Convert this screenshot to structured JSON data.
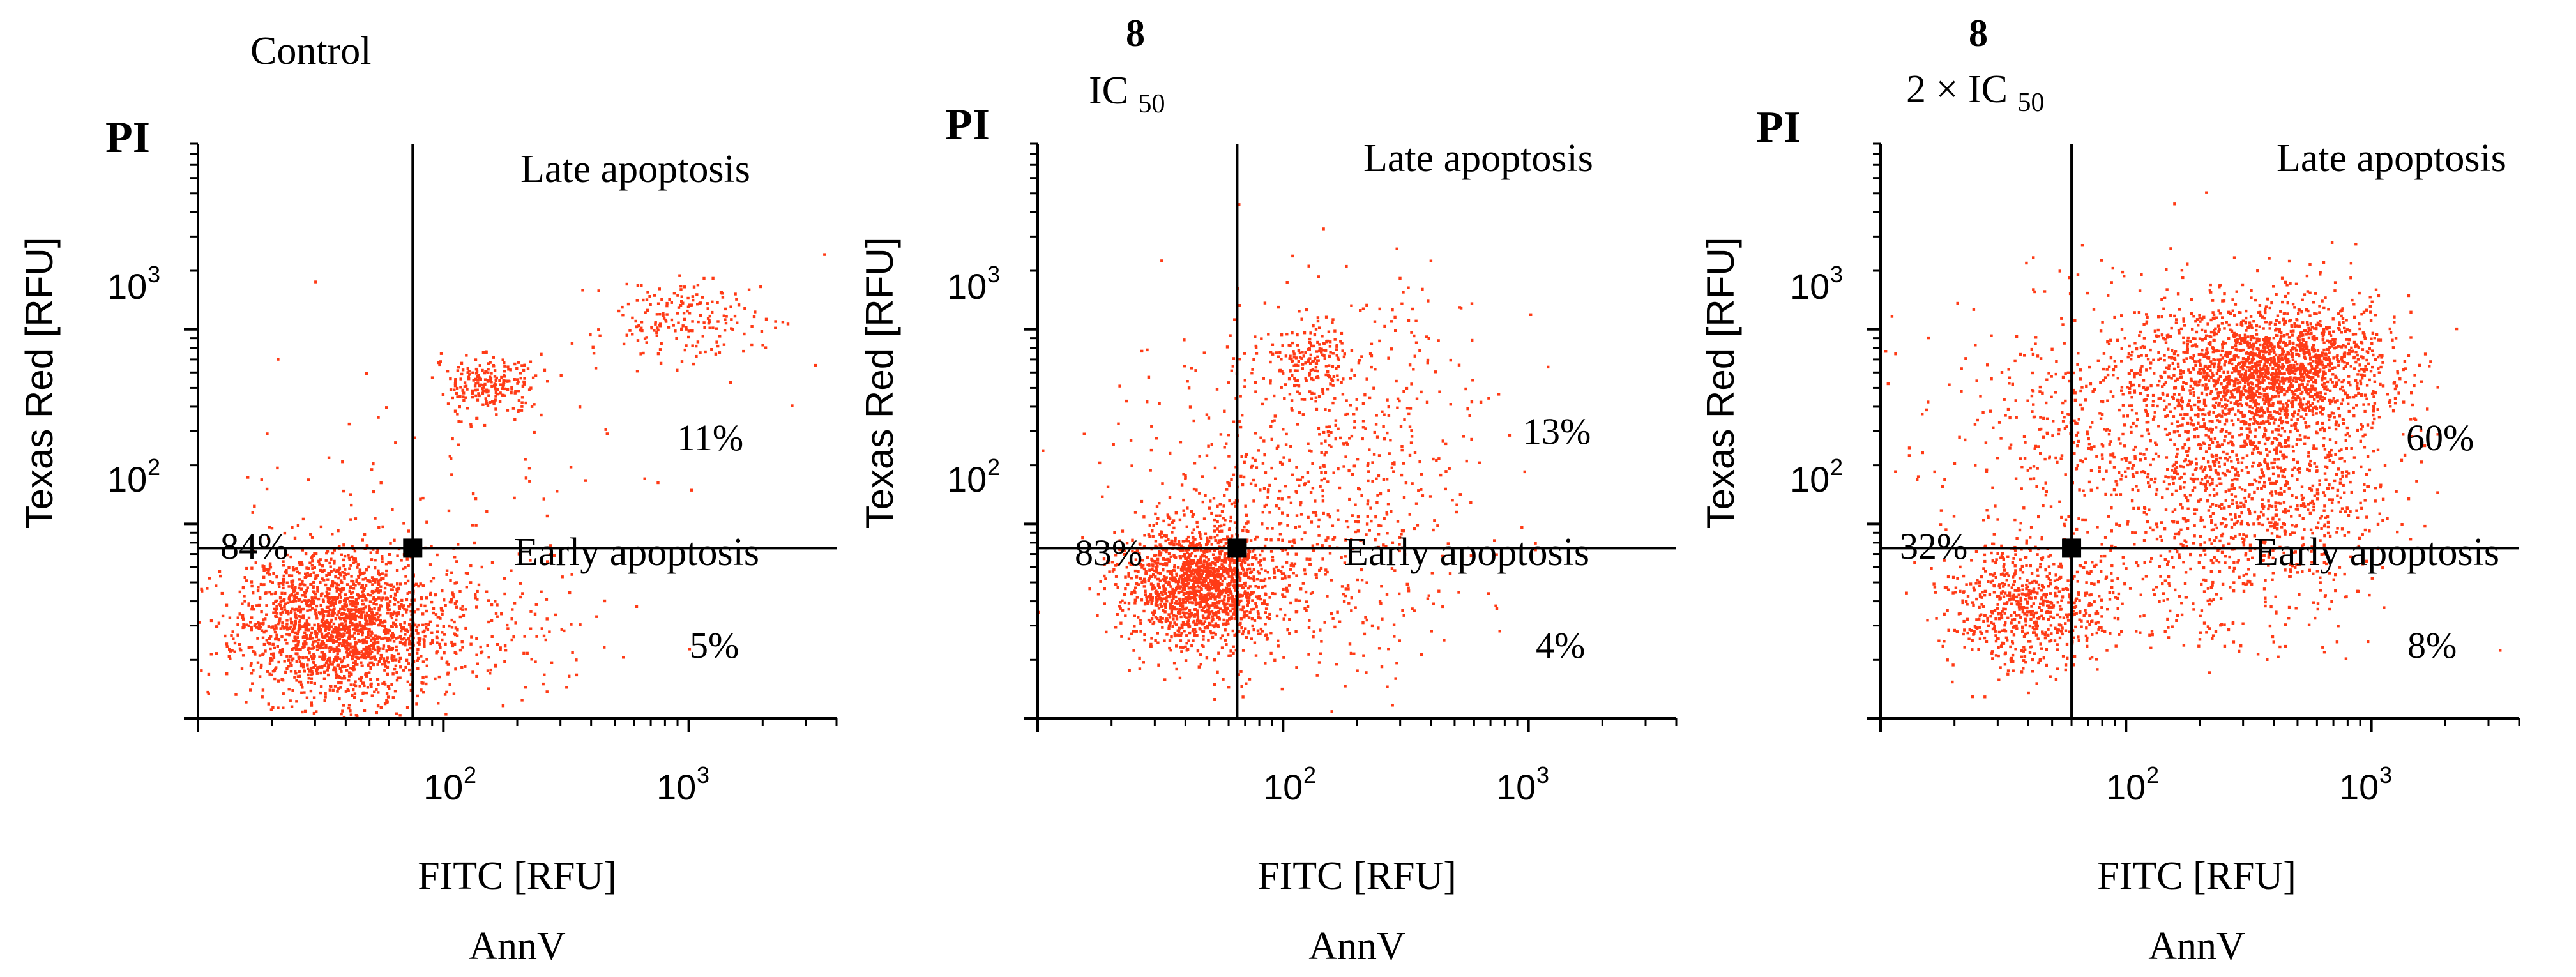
{
  "colors": {
    "dots": "#ff3b16",
    "axis": "#000000",
    "gate_marker": "#000000"
  },
  "chart_data": [
    {
      "type": "scatter",
      "title_line1": "Control",
      "title_line2": "",
      "title_line2_sub": "",
      "corner_label": "PI",
      "ylabel": "Texas Red [RFU]",
      "xlabel": "FITC [RFU]",
      "xlabel2": "AnnV",
      "x_scale": "log",
      "y_scale": "log",
      "xlim": [
        10,
        4000
      ],
      "ylim": [
        10,
        9000
      ],
      "x_tick_labels": [
        {
          "value": 100,
          "base": "10",
          "exp": "2"
        },
        {
          "value": 1000,
          "base": "10",
          "exp": "3"
        }
      ],
      "y_tick_labels": [
        {
          "value": 100,
          "base": "10",
          "exp": "2"
        },
        {
          "value": 1000,
          "base": "10",
          "exp": "3"
        }
      ],
      "gate": {
        "x": 75,
        "y": 75
      },
      "quadrant_labels": {
        "upper_right": "Late apoptosis",
        "lower_right": "Early apoptosis"
      },
      "percentages": {
        "lower_left": "84%",
        "upper_right": "11%",
        "lower_right": "5%"
      },
      "clusters": [
        {
          "cx": 38,
          "cy": 30,
          "sx": 0.2,
          "sy": 0.2,
          "n": 1900
        },
        {
          "cx": 155,
          "cy": 520,
          "sx": 0.09,
          "sy": 0.08,
          "n": 220
        },
        {
          "cx": 950,
          "cy": 1100,
          "sx": 0.2,
          "sy": 0.12,
          "n": 200
        },
        {
          "cx": 160,
          "cy": 30,
          "sx": 0.22,
          "sy": 0.18,
          "n": 150
        },
        {
          "cx": 110,
          "cy": 120,
          "sx": 0.4,
          "sy": 0.4,
          "n": 90
        }
      ],
      "seed": 11
    },
    {
      "type": "scatter",
      "title_line1": "8",
      "title_line2": "IC",
      "title_line2_sub": "50",
      "corner_label": "PI",
      "ylabel": "Texas Red [RFU]",
      "xlabel": "FITC [RFU]",
      "xlabel2": "AnnV",
      "x_scale": "log",
      "y_scale": "log",
      "xlim": [
        10,
        4000
      ],
      "ylim": [
        10,
        9000
      ],
      "x_tick_labels": [
        {
          "value": 100,
          "base": "10",
          "exp": "2"
        },
        {
          "value": 1000,
          "base": "10",
          "exp": "3"
        }
      ],
      "y_tick_labels": [
        {
          "value": 100,
          "base": "10",
          "exp": "2"
        },
        {
          "value": 1000,
          "base": "10",
          "exp": "3"
        }
      ],
      "gate": {
        "x": 65,
        "y": 75
      },
      "quadrant_labels": {
        "upper_right": "Late apoptosis",
        "lower_right": "Early apoptosis"
      },
      "percentages": {
        "lower_left": "83%",
        "upper_right": "13%",
        "lower_right": "4%"
      },
      "clusters": [
        {
          "cx": 45,
          "cy": 48,
          "sx": 0.15,
          "sy": 0.16,
          "n": 1500
        },
        {
          "cx": 130,
          "cy": 700,
          "sx": 0.1,
          "sy": 0.08,
          "n": 160
        },
        {
          "cx": 180,
          "cy": 220,
          "sx": 0.3,
          "sy": 0.45,
          "n": 500
        },
        {
          "cx": 70,
          "cy": 150,
          "sx": 0.3,
          "sy": 0.35,
          "n": 200
        },
        {
          "cx": 130,
          "cy": 35,
          "sx": 0.28,
          "sy": 0.22,
          "n": 120
        }
      ],
      "seed": 23
    },
    {
      "type": "scatter",
      "title_line1": "8",
      "title_line2": "2 × IC",
      "title_line2_sub": "50",
      "corner_label": "PI",
      "ylabel": "Texas Red [RFU]",
      "xlabel": "FITC [RFU]",
      "xlabel2": "AnnV",
      "x_scale": "log",
      "y_scale": "log",
      "xlim": [
        10,
        4000
      ],
      "ylim": [
        10,
        9000
      ],
      "x_tick_labels": [
        {
          "value": 100,
          "base": "10",
          "exp": "2"
        },
        {
          "value": 1000,
          "base": "10",
          "exp": "3"
        }
      ],
      "y_tick_labels": [
        {
          "value": 100,
          "base": "10",
          "exp": "2"
        },
        {
          "value": 1000,
          "base": "10",
          "exp": "3"
        }
      ],
      "gate": {
        "x": 60,
        "y": 75
      },
      "quadrant_labels": {
        "upper_right": "Late apoptosis",
        "lower_right": "Early apoptosis"
      },
      "percentages": {
        "lower_left": "32%",
        "upper_right": "60%",
        "lower_right": "8%"
      },
      "clusters": [
        {
          "cx": 40,
          "cy": 38,
          "sx": 0.16,
          "sy": 0.16,
          "n": 650
        },
        {
          "cx": 400,
          "cy": 650,
          "sx": 0.22,
          "sy": 0.16,
          "n": 1500
        },
        {
          "cx": 220,
          "cy": 350,
          "sx": 0.35,
          "sy": 0.3,
          "n": 900
        },
        {
          "cx": 350,
          "cy": 130,
          "sx": 0.25,
          "sy": 0.28,
          "n": 700
        },
        {
          "cx": 55,
          "cy": 300,
          "sx": 0.35,
          "sy": 0.35,
          "n": 300
        },
        {
          "cx": 200,
          "cy": 40,
          "sx": 0.3,
          "sy": 0.15,
          "n": 120
        }
      ],
      "seed": 37
    }
  ]
}
